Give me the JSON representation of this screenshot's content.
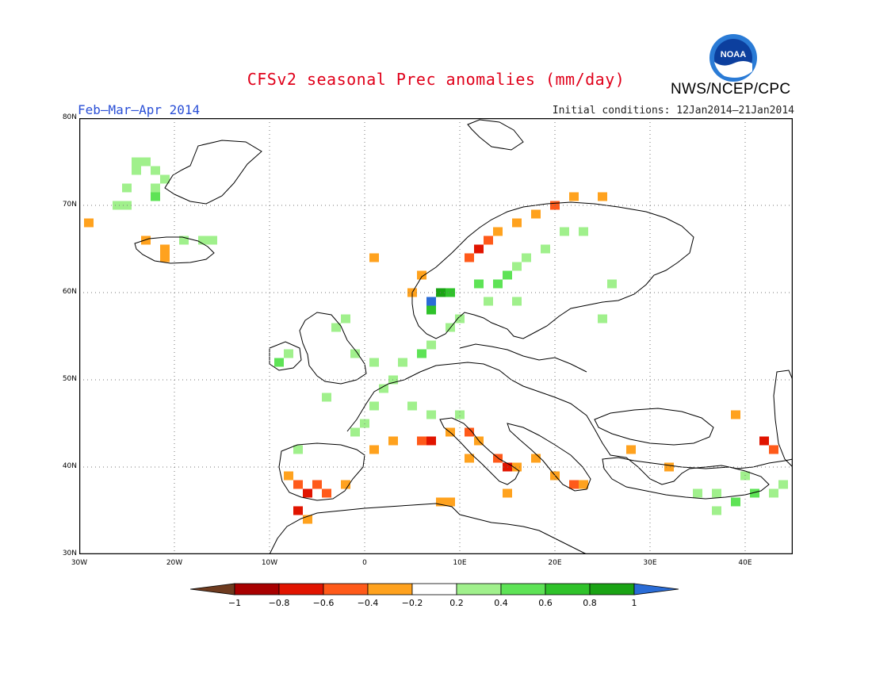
{
  "title": "CFSv2 seasonal Prec anomalies (mm/day)",
  "subtitle": "Feb–Mar–Apr 2014",
  "initial_conditions": "Initial conditions: 12Jan2014–21Jan2014",
  "agency": "NWS/NCEP/CPC",
  "logo_text": "NOAA",
  "map": {
    "lon_range": [
      -30,
      45
    ],
    "lat_range": [
      30,
      80
    ],
    "lon_ticks": [
      {
        "value": -30,
        "label": "30W"
      },
      {
        "value": -20,
        "label": "20W"
      },
      {
        "value": -10,
        "label": "10W"
      },
      {
        "value": 0,
        "label": "0"
      },
      {
        "value": 10,
        "label": "10E"
      },
      {
        "value": 20,
        "label": "20E"
      },
      {
        "value": 30,
        "label": "30E"
      },
      {
        "value": 40,
        "label": "40E"
      }
    ],
    "lat_ticks": [
      {
        "value": 30,
        "label": "30N"
      },
      {
        "value": 40,
        "label": "40N"
      },
      {
        "value": 50,
        "label": "50N"
      },
      {
        "value": 60,
        "label": "60N"
      },
      {
        "value": 70,
        "label": "70N"
      },
      {
        "value": 80,
        "label": "80N"
      }
    ],
    "grid_lines": "dotted",
    "colors": {
      "coast": "#000000",
      "grid": "#777777"
    }
  },
  "legend": {
    "bins": [
      {
        "color": "#6e3b1f"
      },
      {
        "color": "#a80000"
      },
      {
        "color": "#e11400"
      },
      {
        "color": "#ff5a1a"
      },
      {
        "color": "#ffa21e"
      },
      {
        "color": "#ffffff"
      },
      {
        "color": "#a0f08c"
      },
      {
        "color": "#5ee356"
      },
      {
        "color": "#2fc22a"
      },
      {
        "color": "#1aa314"
      },
      {
        "color": "#2a6cd6"
      }
    ],
    "tick_labels": [
      "−1",
      "−0.8",
      "−0.6",
      "−0.4",
      "−0.2",
      "0.2",
      "0.4",
      "0.6",
      "0.8",
      "1"
    ]
  },
  "chart_data": {
    "type": "heatmap",
    "title": "CFSv2 seasonal Prec anomalies (mm/day)",
    "units": "mm/day",
    "region": "Europe",
    "grid_spacing_deg": 1,
    "lon_range": [
      -30,
      45
    ],
    "lat_range": [
      30,
      80
    ],
    "anomaly_cells": [
      {
        "lon": -24,
        "lat": 75,
        "value": 0.3
      },
      {
        "lon": -23,
        "lat": 75,
        "value": 0.3
      },
      {
        "lon": -24,
        "lat": 74,
        "value": 0.3
      },
      {
        "lon": -22,
        "lat": 74,
        "value": 0.3
      },
      {
        "lon": -21,
        "lat": 73,
        "value": 0.3
      },
      {
        "lon": -22,
        "lat": 72,
        "value": 0.3
      },
      {
        "lon": -25,
        "lat": 72,
        "value": 0.3
      },
      {
        "lon": -22,
        "lat": 71,
        "value": 0.5
      },
      {
        "lon": -25,
        "lat": 70,
        "value": 0.3
      },
      {
        "lon": -26,
        "lat": 70,
        "value": 0.3
      },
      {
        "lon": -29,
        "lat": 68,
        "value": -0.3
      },
      {
        "lon": -23,
        "lat": 66,
        "value": -0.3
      },
      {
        "lon": -21,
        "lat": 65,
        "value": -0.3
      },
      {
        "lon": -21,
        "lat": 64,
        "value": -0.3
      },
      {
        "lon": -19,
        "lat": 66,
        "value": 0.3
      },
      {
        "lon": -17,
        "lat": 66,
        "value": 0.3
      },
      {
        "lon": -16,
        "lat": 66,
        "value": 0.3
      },
      {
        "lon": 1,
        "lat": 64,
        "value": -0.3
      },
      {
        "lon": 11,
        "lat": 64,
        "value": -0.5
      },
      {
        "lon": 12,
        "lat": 65,
        "value": -0.7
      },
      {
        "lon": 13,
        "lat": 66,
        "value": -0.5
      },
      {
        "lon": 14,
        "lat": 67,
        "value": -0.3
      },
      {
        "lon": 16,
        "lat": 68,
        "value": -0.3
      },
      {
        "lon": 18,
        "lat": 69,
        "value": -0.3
      },
      {
        "lon": 20,
        "lat": 70,
        "value": -0.5
      },
      {
        "lon": 22,
        "lat": 71,
        "value": -0.3
      },
      {
        "lon": 25,
        "lat": 71,
        "value": -0.3
      },
      {
        "lon": 6,
        "lat": 62,
        "value": -0.3
      },
      {
        "lon": 5,
        "lat": 60,
        "value": -0.3
      },
      {
        "lon": 7,
        "lat": 59,
        "value": 1.1
      },
      {
        "lon": 8,
        "lat": 60,
        "value": 0.9
      },
      {
        "lon": 9,
        "lat": 60,
        "value": 0.7
      },
      {
        "lon": 7,
        "lat": 58,
        "value": 0.7
      },
      {
        "lon": 12,
        "lat": 61,
        "value": 0.5
      },
      {
        "lon": 14,
        "lat": 61,
        "value": 0.5
      },
      {
        "lon": 15,
        "lat": 62,
        "value": 0.5
      },
      {
        "lon": 16,
        "lat": 63,
        "value": 0.3
      },
      {
        "lon": 17,
        "lat": 64,
        "value": 0.3
      },
      {
        "lon": 19,
        "lat": 65,
        "value": 0.3
      },
      {
        "lon": 21,
        "lat": 67,
        "value": 0.3
      },
      {
        "lon": 23,
        "lat": 67,
        "value": 0.3
      },
      {
        "lon": 13,
        "lat": 59,
        "value": 0.3
      },
      {
        "lon": 16,
        "lat": 59,
        "value": 0.3
      },
      {
        "lon": 26,
        "lat": 61,
        "value": 0.3
      },
      {
        "lon": 25,
        "lat": 57,
        "value": 0.3
      },
      {
        "lon": 9,
        "lat": 56,
        "value": 0.3
      },
      {
        "lon": 10,
        "lat": 57,
        "value": 0.3
      },
      {
        "lon": -3,
        "lat": 56,
        "value": 0.3
      },
      {
        "lon": -2,
        "lat": 57,
        "value": 0.3
      },
      {
        "lon": -1,
        "lat": 53,
        "value": 0.3
      },
      {
        "lon": 1,
        "lat": 52,
        "value": 0.3
      },
      {
        "lon": -8,
        "lat": 53,
        "value": 0.3
      },
      {
        "lon": -9,
        "lat": 52,
        "value": 0.5
      },
      {
        "lon": 4,
        "lat": 52,
        "value": 0.3
      },
      {
        "lon": 6,
        "lat": 53,
        "value": 0.5
      },
      {
        "lon": 7,
        "lat": 54,
        "value": 0.3
      },
      {
        "lon": 3,
        "lat": 50,
        "value": 0.3
      },
      {
        "lon": 2,
        "lat": 49,
        "value": 0.3
      },
      {
        "lon": -4,
        "lat": 48,
        "value": 0.3
      },
      {
        "lon": 1,
        "lat": 47,
        "value": 0.3
      },
      {
        "lon": 5,
        "lat": 47,
        "value": 0.3
      },
      {
        "lon": 7,
        "lat": 46,
        "value": 0.3
      },
      {
        "lon": 10,
        "lat": 46,
        "value": 0.3
      },
      {
        "lon": 0,
        "lat": 45,
        "value": 0.3
      },
      {
        "lon": -1,
        "lat": 44,
        "value": 0.3
      },
      {
        "lon": -7,
        "lat": 42,
        "value": 0.3
      },
      {
        "lon": 3,
        "lat": 43,
        "value": -0.3
      },
      {
        "lon": 6,
        "lat": 43,
        "value": -0.5
      },
      {
        "lon": 7,
        "lat": 43,
        "value": -0.7
      },
      {
        "lon": 9,
        "lat": 44,
        "value": -0.3
      },
      {
        "lon": 11,
        "lat": 44,
        "value": -0.5
      },
      {
        "lon": 12,
        "lat": 43,
        "value": -0.3
      },
      {
        "lon": 11,
        "lat": 41,
        "value": -0.3
      },
      {
        "lon": 14,
        "lat": 41,
        "value": -0.5
      },
      {
        "lon": 15,
        "lat": 40,
        "value": -0.7
      },
      {
        "lon": 16,
        "lat": 40,
        "value": -0.3
      },
      {
        "lon": 18,
        "lat": 41,
        "value": -0.3
      },
      {
        "lon": 20,
        "lat": 39,
        "value": -0.3
      },
      {
        "lon": 22,
        "lat": 38,
        "value": -0.5
      },
      {
        "lon": 23,
        "lat": 38,
        "value": -0.3
      },
      {
        "lon": 9,
        "lat": 36,
        "value": -0.3
      },
      {
        "lon": 15,
        "lat": 37,
        "value": -0.3
      },
      {
        "lon": 1,
        "lat": 42,
        "value": -0.3
      },
      {
        "lon": -8,
        "lat": 39,
        "value": -0.3
      },
      {
        "lon": -7,
        "lat": 38,
        "value": -0.5
      },
      {
        "lon": -6,
        "lat": 37,
        "value": -0.7
      },
      {
        "lon": -5,
        "lat": 38,
        "value": -0.5
      },
      {
        "lon": -4,
        "lat": 37,
        "value": -0.5
      },
      {
        "lon": -2,
        "lat": 38,
        "value": -0.3
      },
      {
        "lon": -7,
        "lat": 35,
        "value": -0.7
      },
      {
        "lon": -6,
        "lat": 34,
        "value": -0.3
      },
      {
        "lon": 8,
        "lat": 36,
        "value": -0.3
      },
      {
        "lon": 28,
        "lat": 42,
        "value": -0.3
      },
      {
        "lon": 39,
        "lat": 46,
        "value": -0.3
      },
      {
        "lon": 42,
        "lat": 43,
        "value": -0.7
      },
      {
        "lon": 43,
        "lat": 42,
        "value": -0.5
      },
      {
        "lon": 32,
        "lat": 40,
        "value": -0.3
      },
      {
        "lon": 35,
        "lat": 37,
        "value": 0.3
      },
      {
        "lon": 37,
        "lat": 37,
        "value": 0.3
      },
      {
        "lon": 39,
        "lat": 36,
        "value": 0.5
      },
      {
        "lon": 41,
        "lat": 37,
        "value": 0.5
      },
      {
        "lon": 43,
        "lat": 37,
        "value": 0.3
      },
      {
        "lon": 44,
        "lat": 38,
        "value": 0.3
      },
      {
        "lon": 40,
        "lat": 39,
        "value": 0.3
      },
      {
        "lon": 37,
        "lat": 35,
        "value": 0.3
      }
    ]
  }
}
